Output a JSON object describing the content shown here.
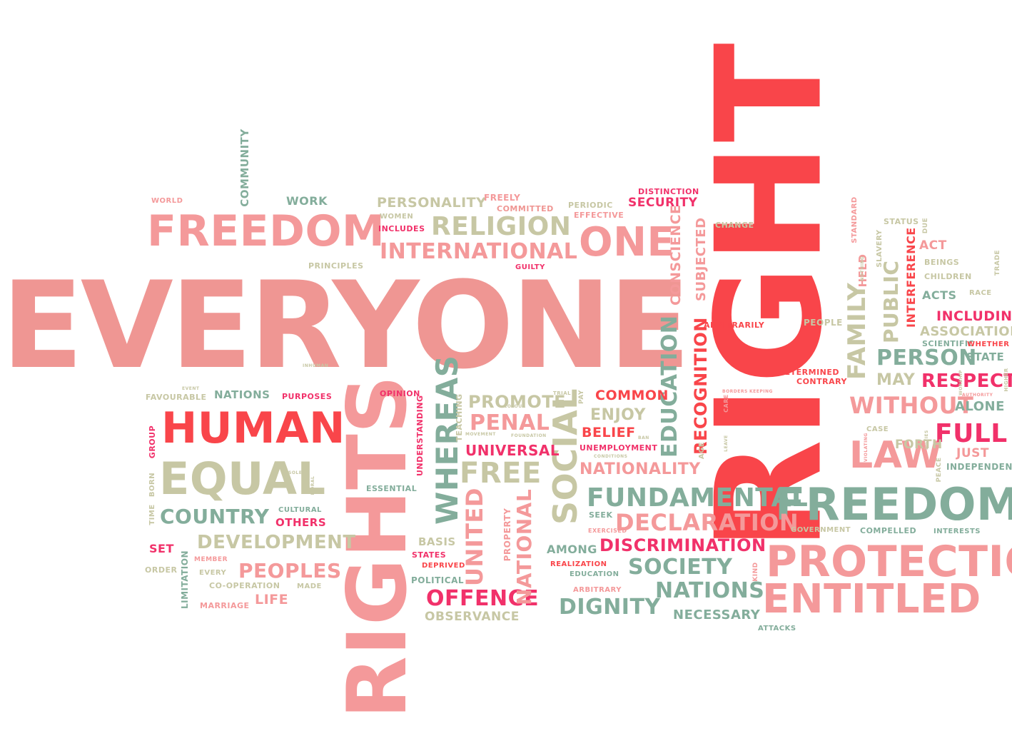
{
  "palette": {
    "c1": "#f4999a",
    "c2": "#ef9693",
    "c3": "#f9454a",
    "c4": "#f1316a",
    "c5": "#83ad9b",
    "c6": "#c7c7a4",
    "background": "#ffffff"
  },
  "words": {
    "everyone": "EVERYONE",
    "right": "RIGHT",
    "rights": "RIGHTS",
    "freedom": "FREEDOM",
    "human": "HUMAN",
    "equal": "EQUAL",
    "freedoms": "FREEDOMS",
    "protection": "PROTECTION",
    "entitled": "ENTITLED",
    "one": "ONE",
    "religion": "RELIGION",
    "international": "INTERNATIONAL",
    "personality": "PERSONALITY",
    "fundamental": "FUNDAMENTAL",
    "social": "SOCIAL",
    "whereas": "WHEREAS",
    "education": "EDUCATION",
    "recognition": "RECOGNITION",
    "declaration": "DECLARATION",
    "discrimination": "DISCRIMINATION",
    "society": "SOCIETY",
    "nations": "NATIONS",
    "dignity": "DIGNITY",
    "country": "COUNTRY",
    "development": "DEVELOPMENT",
    "peoples": "PEOPLES",
    "offence": "OFFENCE",
    "free": "FREE",
    "penal": "PENAL",
    "promote": "PROMOTE",
    "universal": "UNIVERSAL",
    "united": "UNITED",
    "national": "NATIONAL",
    "law": "LAW",
    "without": "WITHOUT",
    "person": "PERSON",
    "full": "FULL",
    "respect": "RESPECT",
    "family": "FAMILY",
    "public": "PUBLIC",
    "conscience": "CONSCIENCE",
    "subjected": "SUBJECTED",
    "security": "SECURITY",
    "work": "WORK",
    "community": "COMMUNITY",
    "world": "WORLD",
    "principles": "PRINCIPLES",
    "freely": "FREELY",
    "committed": "COMMITTED",
    "women": "WOMEN",
    "includes": "INCLUDES",
    "periodic": "PERIODIC",
    "effective": "EFFECTIVE",
    "distinction": "DISTINCTION",
    "guilty": "GUILTY",
    "nationality": "NATIONALITY",
    "enjoy": "ENJOY",
    "belief": "BELIEF",
    "common": "COMMON",
    "unemployment": "UNEMPLOYMENT",
    "among": "AMONG",
    "realization": "REALIZATION",
    "education_small": "EDUCATION",
    "arbitrary": "ARBITRARY",
    "necessary": "NECESSARY",
    "observance": "OBSERVANCE",
    "basis": "BASIS",
    "states": "STATES",
    "deprived": "DEPRIVED",
    "political": "POLITICAL",
    "made": "MADE",
    "co_operation": "CO-OPERATION",
    "marriage": "MARRIAGE",
    "life": "LIFE",
    "every": "EVERY",
    "member": "MEMBER",
    "set": "SET",
    "order": "ORDER",
    "limitation": "LIMITATION",
    "others": "OTHERS",
    "cultural": "CULTURAL",
    "time": "TIME",
    "born": "BORN",
    "group": "GROUP",
    "favourable": "FAVOURABLE",
    "nations_small": "NATIONS",
    "purposes": "PURPOSES",
    "opinion": "OPINION",
    "understanding": "UNDERSTANDING",
    "teaching": "TEACHING",
    "essential": "ESSENTIAL",
    "property": "PROPERTY",
    "seek": "SEEK",
    "exercised": "EXERCISED",
    "age": "AGE",
    "arbitrarily": "ARBITRARILY",
    "people": "PEOPLE",
    "determined": "DETERMINED",
    "contrary": "CONTRARY",
    "association": "ASSOCIATION",
    "including": "INCLUDING",
    "scientific": "SCIENTIFIC",
    "whether": "WHETHER",
    "state": "STATE",
    "may": "MAY",
    "alone": "ALONE",
    "forth": "FORTH",
    "case": "CASE",
    "just": "JUST",
    "independent": "INDEPENDENT",
    "act": "ACT",
    "acts": "ACTS",
    "beings": "BEINGS",
    "children": "CHILDREN",
    "race": "RACE",
    "held": "HELD",
    "interference": "INTERFERENCE",
    "status": "STATUS",
    "change": "CHANGE",
    "standard": "STANDARD",
    "slavery": "SLAVERY",
    "due": "DUE",
    "trade": "TRADE",
    "government": "GOVERNMENT",
    "compelled": "COMPELLED",
    "interests": "INTERESTS",
    "attacks": "ATTACKS",
    "kind": "KIND",
    "pay": "PAY",
    "trial": "TRIAL",
    "peace": "PEACE",
    "higher": "HIGHER",
    "authority": "AUTHORITY",
    "borders": "BORDERS",
    "keeping": "KEEPING",
    "care": "CARE",
    "leave": "LEAVE",
    "violating": "VIOLATING",
    "nothing": "NOTHING",
    "movement": "MOVEMENT",
    "foundation": "FOUNDATION",
    "colour": "COLOUR",
    "conditions": "CONDITIONS",
    "ban": "BAN",
    "event": "EVENT",
    "inhuman": "INHUMAN",
    "solely": "SOLELY",
    "moral": "MORAL",
    "duties": "DUTIES",
    "worship": "WORSHIP"
  }
}
